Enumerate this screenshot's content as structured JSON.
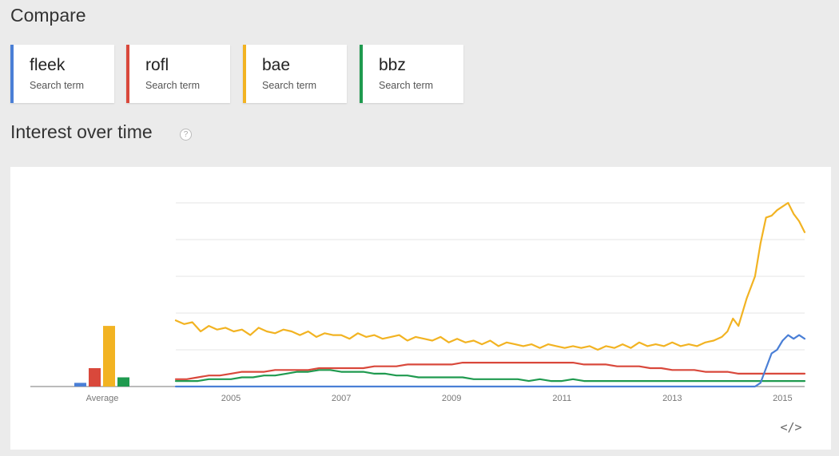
{
  "compare": {
    "title": "Compare"
  },
  "terms": [
    {
      "name": "fleek",
      "sub": "Search term",
      "color": "#4a7fd6"
    },
    {
      "name": "rofl",
      "sub": "Search term",
      "color": "#d9483b"
    },
    {
      "name": "bae",
      "sub": "Search term",
      "color": "#f2b322"
    },
    {
      "name": "bbz",
      "sub": "Search term",
      "color": "#1f9a4f"
    }
  ],
  "interest": {
    "title": "Interest over time",
    "help_glyph": "?"
  },
  "embed_icon": "</>",
  "chart_data": {
    "type": "line",
    "xlim": [
      2004.0,
      2015.4
    ],
    "ylim": [
      0,
      100
    ],
    "x_ticks": [
      "2005",
      "2007",
      "2009",
      "2011",
      "2013",
      "2015"
    ],
    "x_tick_values": [
      2005,
      2007,
      2009,
      2011,
      2013,
      2015
    ],
    "grid": true,
    "average": {
      "label": "Average",
      "values": [
        2,
        10,
        33,
        5
      ]
    },
    "series": [
      {
        "name": "fleek",
        "color": "#4a7fd6",
        "points": [
          [
            2004.0,
            0
          ],
          [
            2014.5,
            0
          ],
          [
            2014.6,
            2
          ],
          [
            2014.7,
            10
          ],
          [
            2014.8,
            18
          ],
          [
            2014.9,
            20
          ],
          [
            2015.0,
            25
          ],
          [
            2015.1,
            28
          ],
          [
            2015.2,
            26
          ],
          [
            2015.3,
            28
          ],
          [
            2015.4,
            26
          ]
        ]
      },
      {
        "name": "rofl",
        "color": "#d9483b",
        "points": [
          [
            2004.0,
            4
          ],
          [
            2004.2,
            4
          ],
          [
            2004.4,
            5
          ],
          [
            2004.6,
            6
          ],
          [
            2004.8,
            6
          ],
          [
            2005.0,
            7
          ],
          [
            2005.2,
            8
          ],
          [
            2005.4,
            8
          ],
          [
            2005.6,
            8
          ],
          [
            2005.8,
            9
          ],
          [
            2006.0,
            9
          ],
          [
            2006.2,
            9
          ],
          [
            2006.4,
            9
          ],
          [
            2006.6,
            10
          ],
          [
            2006.8,
            10
          ],
          [
            2007.0,
            10
          ],
          [
            2007.2,
            10
          ],
          [
            2007.4,
            10
          ],
          [
            2007.6,
            11
          ],
          [
            2007.8,
            11
          ],
          [
            2008.0,
            11
          ],
          [
            2008.2,
            12
          ],
          [
            2008.4,
            12
          ],
          [
            2008.6,
            12
          ],
          [
            2008.8,
            12
          ],
          [
            2009.0,
            12
          ],
          [
            2009.2,
            13
          ],
          [
            2009.4,
            13
          ],
          [
            2009.6,
            13
          ],
          [
            2009.8,
            13
          ],
          [
            2010.0,
            13
          ],
          [
            2010.2,
            13
          ],
          [
            2010.4,
            13
          ],
          [
            2010.6,
            13
          ],
          [
            2010.8,
            13
          ],
          [
            2011.0,
            13
          ],
          [
            2011.2,
            13
          ],
          [
            2011.4,
            12
          ],
          [
            2011.6,
            12
          ],
          [
            2011.8,
            12
          ],
          [
            2012.0,
            11
          ],
          [
            2012.2,
            11
          ],
          [
            2012.4,
            11
          ],
          [
            2012.6,
            10
          ],
          [
            2012.8,
            10
          ],
          [
            2013.0,
            9
          ],
          [
            2013.2,
            9
          ],
          [
            2013.4,
            9
          ],
          [
            2013.6,
            8
          ],
          [
            2013.8,
            8
          ],
          [
            2014.0,
            8
          ],
          [
            2014.2,
            7
          ],
          [
            2014.4,
            7
          ],
          [
            2014.6,
            7
          ],
          [
            2014.8,
            7
          ],
          [
            2015.0,
            7
          ],
          [
            2015.2,
            7
          ],
          [
            2015.4,
            7
          ]
        ]
      },
      {
        "name": "bae",
        "color": "#f2b322",
        "points": [
          [
            2004.0,
            36
          ],
          [
            2004.15,
            34
          ],
          [
            2004.3,
            35
          ],
          [
            2004.45,
            30
          ],
          [
            2004.6,
            33
          ],
          [
            2004.75,
            31
          ],
          [
            2004.9,
            32
          ],
          [
            2005.05,
            30
          ],
          [
            2005.2,
            31
          ],
          [
            2005.35,
            28
          ],
          [
            2005.5,
            32
          ],
          [
            2005.65,
            30
          ],
          [
            2005.8,
            29
          ],
          [
            2005.95,
            31
          ],
          [
            2006.1,
            30
          ],
          [
            2006.25,
            28
          ],
          [
            2006.4,
            30
          ],
          [
            2006.55,
            27
          ],
          [
            2006.7,
            29
          ],
          [
            2006.85,
            28
          ],
          [
            2007.0,
            28
          ],
          [
            2007.15,
            26
          ],
          [
            2007.3,
            29
          ],
          [
            2007.45,
            27
          ],
          [
            2007.6,
            28
          ],
          [
            2007.75,
            26
          ],
          [
            2007.9,
            27
          ],
          [
            2008.05,
            28
          ],
          [
            2008.2,
            25
          ],
          [
            2008.35,
            27
          ],
          [
            2008.5,
            26
          ],
          [
            2008.65,
            25
          ],
          [
            2008.8,
            27
          ],
          [
            2008.95,
            24
          ],
          [
            2009.1,
            26
          ],
          [
            2009.25,
            24
          ],
          [
            2009.4,
            25
          ],
          [
            2009.55,
            23
          ],
          [
            2009.7,
            25
          ],
          [
            2009.85,
            22
          ],
          [
            2010.0,
            24
          ],
          [
            2010.15,
            23
          ],
          [
            2010.3,
            22
          ],
          [
            2010.45,
            23
          ],
          [
            2010.6,
            21
          ],
          [
            2010.75,
            23
          ],
          [
            2010.9,
            22
          ],
          [
            2011.05,
            21
          ],
          [
            2011.2,
            22
          ],
          [
            2011.35,
            21
          ],
          [
            2011.5,
            22
          ],
          [
            2011.65,
            20
          ],
          [
            2011.8,
            22
          ],
          [
            2011.95,
            21
          ],
          [
            2012.1,
            23
          ],
          [
            2012.25,
            21
          ],
          [
            2012.4,
            24
          ],
          [
            2012.55,
            22
          ],
          [
            2012.7,
            23
          ],
          [
            2012.85,
            22
          ],
          [
            2013.0,
            24
          ],
          [
            2013.15,
            22
          ],
          [
            2013.3,
            23
          ],
          [
            2013.45,
            22
          ],
          [
            2013.6,
            24
          ],
          [
            2013.75,
            25
          ],
          [
            2013.9,
            27
          ],
          [
            2014.0,
            30
          ],
          [
            2014.1,
            37
          ],
          [
            2014.2,
            33
          ],
          [
            2014.35,
            48
          ],
          [
            2014.5,
            60
          ],
          [
            2014.6,
            78
          ],
          [
            2014.7,
            92
          ],
          [
            2014.8,
            93
          ],
          [
            2014.9,
            96
          ],
          [
            2015.0,
            98
          ],
          [
            2015.1,
            100
          ],
          [
            2015.2,
            94
          ],
          [
            2015.3,
            90
          ],
          [
            2015.4,
            84
          ]
        ]
      },
      {
        "name": "bbz",
        "color": "#1f9a4f",
        "points": [
          [
            2004.0,
            3
          ],
          [
            2004.2,
            3
          ],
          [
            2004.4,
            3
          ],
          [
            2004.6,
            4
          ],
          [
            2004.8,
            4
          ],
          [
            2005.0,
            4
          ],
          [
            2005.2,
            5
          ],
          [
            2005.4,
            5
          ],
          [
            2005.6,
            6
          ],
          [
            2005.8,
            6
          ],
          [
            2006.0,
            7
          ],
          [
            2006.2,
            8
          ],
          [
            2006.4,
            8
          ],
          [
            2006.6,
            9
          ],
          [
            2006.8,
            9
          ],
          [
            2007.0,
            8
          ],
          [
            2007.2,
            8
          ],
          [
            2007.4,
            8
          ],
          [
            2007.6,
            7
          ],
          [
            2007.8,
            7
          ],
          [
            2008.0,
            6
          ],
          [
            2008.2,
            6
          ],
          [
            2008.4,
            5
          ],
          [
            2008.6,
            5
          ],
          [
            2008.8,
            5
          ],
          [
            2009.0,
            5
          ],
          [
            2009.2,
            5
          ],
          [
            2009.4,
            4
          ],
          [
            2009.6,
            4
          ],
          [
            2009.8,
            4
          ],
          [
            2010.0,
            4
          ],
          [
            2010.2,
            4
          ],
          [
            2010.4,
            3
          ],
          [
            2010.6,
            4
          ],
          [
            2010.8,
            3
          ],
          [
            2011.0,
            3
          ],
          [
            2011.2,
            4
          ],
          [
            2011.4,
            3
          ],
          [
            2011.6,
            3
          ],
          [
            2011.8,
            3
          ],
          [
            2012.0,
            3
          ],
          [
            2012.2,
            3
          ],
          [
            2012.4,
            3
          ],
          [
            2012.6,
            3
          ],
          [
            2012.8,
            3
          ],
          [
            2013.0,
            3
          ],
          [
            2013.2,
            3
          ],
          [
            2013.4,
            3
          ],
          [
            2013.6,
            3
          ],
          [
            2013.8,
            3
          ],
          [
            2014.0,
            3
          ],
          [
            2014.2,
            3
          ],
          [
            2014.4,
            3
          ],
          [
            2014.6,
            3
          ],
          [
            2014.8,
            3
          ],
          [
            2015.0,
            3
          ],
          [
            2015.2,
            3
          ],
          [
            2015.4,
            3
          ]
        ]
      }
    ]
  }
}
